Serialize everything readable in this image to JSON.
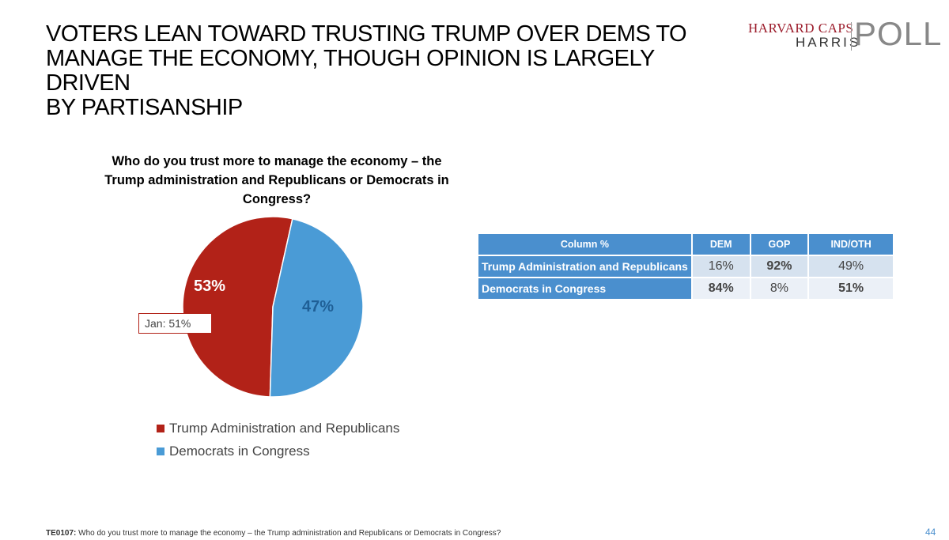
{
  "slide": {
    "title_lines": [
      "VOTERS LEAN TOWARD TRUSTING TRUMP OVER DEMS TO",
      "MANAGE THE ECONOMY, THOUGH OPINION IS LARGELY DRIVEN",
      "BY PARTISANSHIP"
    ],
    "logo": {
      "line1": "HARVARD CAPS",
      "line2": "HARRIS",
      "line3": "POLL"
    },
    "footnote": {
      "code": "TE0107:",
      "text": " Who do you trust more to manage the economy – the Trump administration and Republicans or Democrats in Congress?"
    },
    "page_number": "44",
    "colors": {
      "trump": "#b22218",
      "dems": "#4a9bd6",
      "table_header": "#4a8fce"
    }
  },
  "chart_data": {
    "type": "pie",
    "title_lines": [
      "Who do you trust more to manage the economy – the",
      "Trump administration and Republicans or Democrats in",
      "Congress?"
    ],
    "slices": [
      {
        "name": "Trump Administration and Republicans",
        "value": 53,
        "label": "53%",
        "color": "#b22218"
      },
      {
        "name": "Democrats in Congress",
        "value": 47,
        "label": "47%",
        "color": "#4a9bd6"
      }
    ],
    "annotation": "Jan: 51%",
    "legend_position": "bottom"
  },
  "crosstab": {
    "header": [
      "Column %",
      "DEM",
      "GOP",
      "IND/OTH"
    ],
    "rows": [
      {
        "label": "Trump Administration and Republicans",
        "values": [
          "16%",
          "92%",
          "49%"
        ],
        "bold": [
          false,
          true,
          false
        ]
      },
      {
        "label": "Democrats in Congress",
        "values": [
          "84%",
          "8%",
          "51%"
        ],
        "bold": [
          true,
          false,
          true
        ]
      }
    ]
  }
}
